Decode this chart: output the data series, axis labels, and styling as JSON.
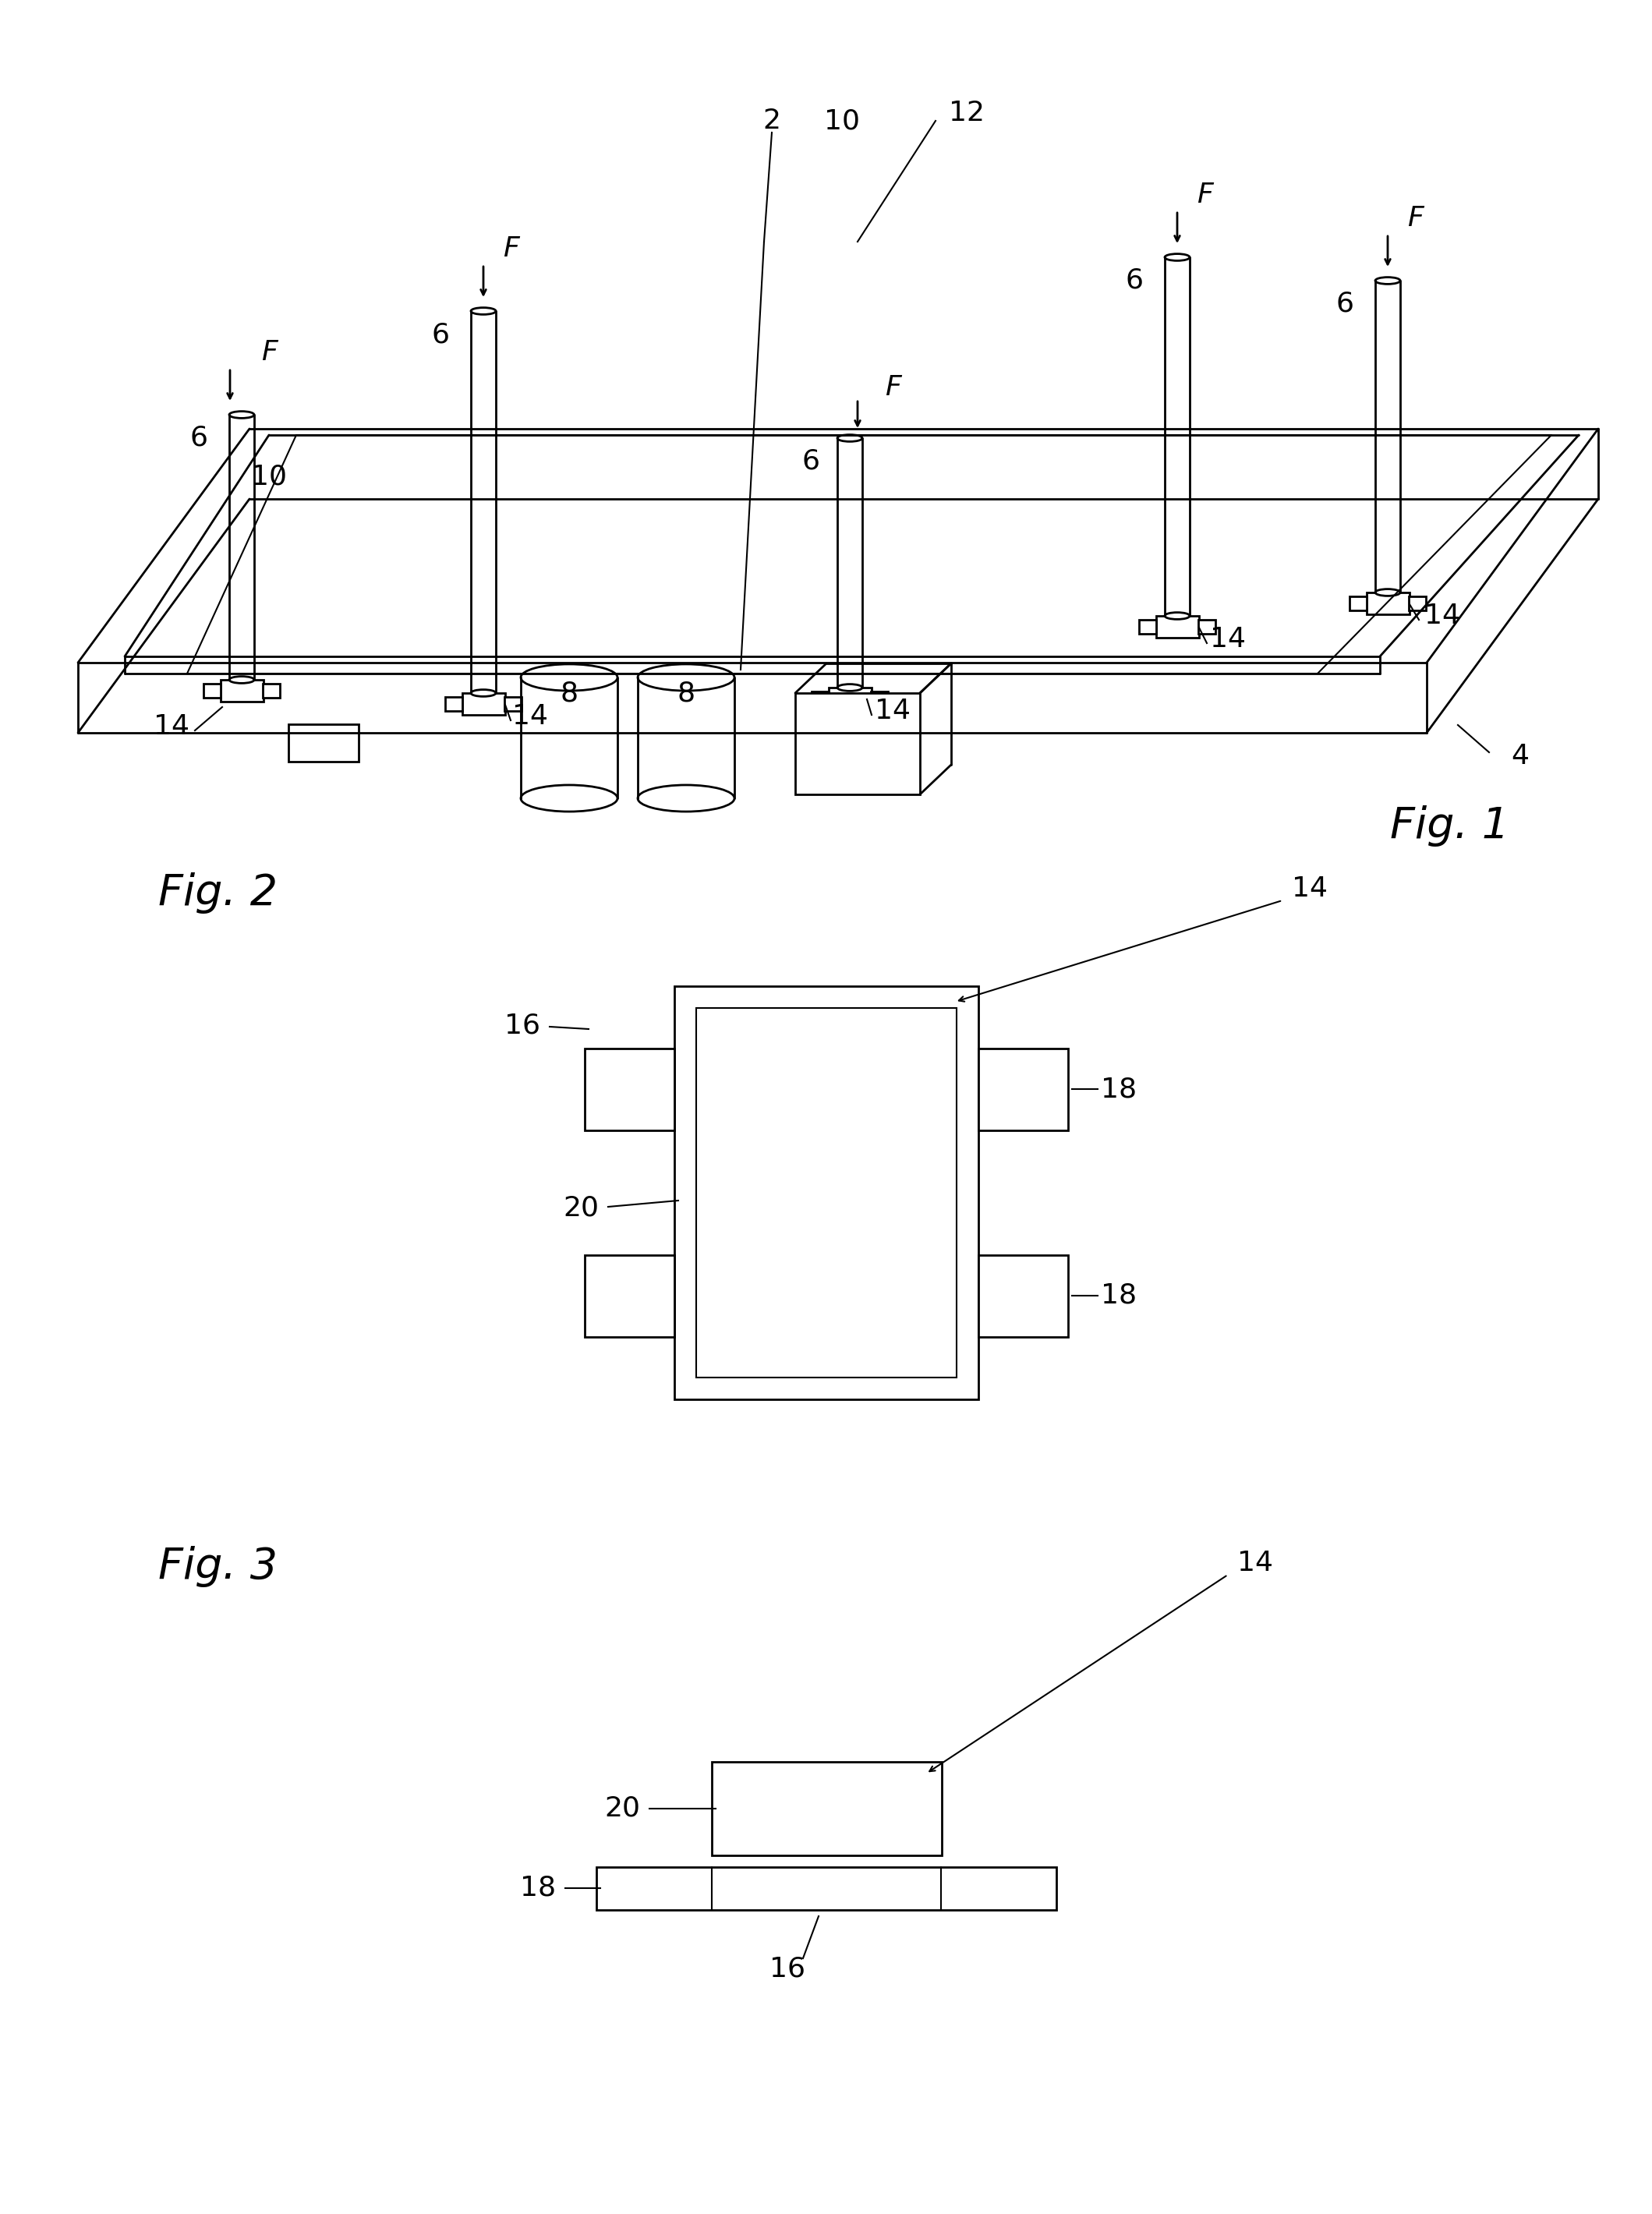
{
  "bg_color": "#ffffff",
  "line_color": "#000000",
  "fig1_label": "Fig. 1",
  "fig2_label": "Fig. 2",
  "fig3_label": "Fig. 3"
}
